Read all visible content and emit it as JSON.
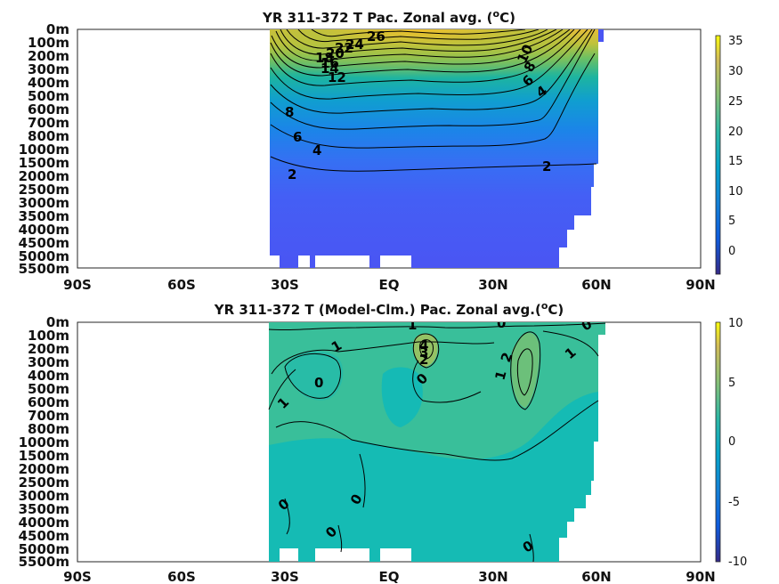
{
  "chart_data": [
    {
      "type": "heatmap",
      "title": "YR 311-372 T Pac. Zonal avg. (",
      "title_sup": "o",
      "title_end": "C)",
      "x_ticks": [
        "90S",
        "60S",
        "30S",
        "EQ",
        "30N",
        "60N",
        "90N"
      ],
      "y_ticks": [
        "0m",
        "100m",
        "200m",
        "300m",
        "400m",
        "500m",
        "600m",
        "700m",
        "800m",
        "1000m",
        "1500m",
        "2000m",
        "2500m",
        "3000m",
        "3500m",
        "4000m",
        "4500m",
        "5000m",
        "5500m"
      ],
      "colorbar_ticks": [
        "35",
        "30",
        "25",
        "20",
        "15",
        "10",
        "5",
        "0"
      ],
      "color_range": [
        -4,
        36
      ],
      "contour_labels": [
        "26",
        "24",
        "22",
        "20",
        "18",
        "16",
        "14",
        "12",
        "10",
        "8",
        "6",
        "4",
        "2",
        "10",
        "8",
        "6",
        "4",
        "2"
      ],
      "data_extent_lat": [
        -34,
        62
      ],
      "colormap": "parula"
    },
    {
      "type": "heatmap",
      "title": "YR 311-372 T (Model-Clm.) Pac. Zonal avg.(",
      "title_sup": "o",
      "title_end": "C)",
      "x_ticks": [
        "90S",
        "60S",
        "30S",
        "EQ",
        "30N",
        "60N",
        "90N"
      ],
      "y_ticks": [
        "0m",
        "100m",
        "200m",
        "300m",
        "400m",
        "500m",
        "600m",
        "700m",
        "800m",
        "1000m",
        "1500m",
        "2000m",
        "2500m",
        "3000m",
        "3500m",
        "4000m",
        "4500m",
        "5000m",
        "5500m"
      ],
      "colorbar_ticks": [
        "10",
        "5",
        "0",
        "-5",
        "-10"
      ],
      "color_range": [
        -10,
        10
      ],
      "contour_labels": [
        "1",
        "0",
        "1",
        "0",
        "1",
        "4",
        "3",
        "2",
        "0",
        "2",
        "1",
        "1",
        "0",
        "0",
        "0",
        "0",
        "0"
      ],
      "data_extent_lat": [
        -34,
        62
      ],
      "colormap": "parula"
    }
  ]
}
